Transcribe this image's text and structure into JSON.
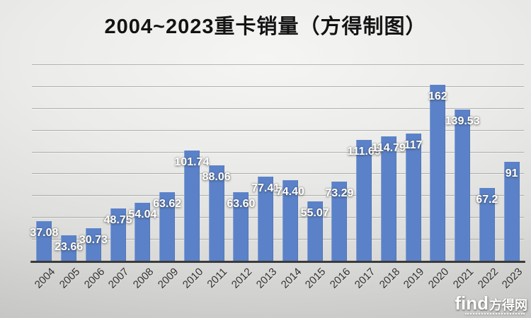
{
  "title": "2004~2023重卡销量（方得制图）",
  "watermark": {
    "brand_latin": "find",
    "brand_cn": "方得网"
  },
  "chart_data": {
    "type": "bar",
    "title": "2004~2023重卡销量（方得制图）",
    "categories": [
      "2004",
      "2005",
      "2006",
      "2007",
      "2008",
      "2009",
      "2010",
      "2011",
      "2012",
      "2013",
      "2014",
      "2015",
      "2016",
      "2017",
      "2018",
      "2019",
      "2020",
      "2021",
      "2022",
      "2023"
    ],
    "values": [
      37.08,
      23.66,
      30.73,
      48.75,
      54.04,
      63.62,
      101.74,
      88.06,
      63.6,
      77.41,
      74.4,
      55.07,
      73.29,
      111.69,
      114.79,
      117,
      162,
      139.53,
      67.2,
      91
    ],
    "labels": [
      "37.08",
      "23.66",
      "30.73",
      "48.75",
      "54.04",
      "63.62",
      "101.74",
      "88.06",
      "63.60",
      "77.41",
      "74.40",
      "55.07",
      "73.29",
      "111.69",
      "114.79",
      "117",
      "162",
      "139.53",
      "67.2",
      "91"
    ],
    "xlabel": "",
    "ylabel": "",
    "ylim": [
      0,
      180
    ],
    "grid_step": 20,
    "grid": true,
    "legend": false,
    "label_position": "inside-end",
    "bar_color": "#5b82c8",
    "label_color": "#ffffff",
    "axis_color": "#3b3b3b"
  }
}
